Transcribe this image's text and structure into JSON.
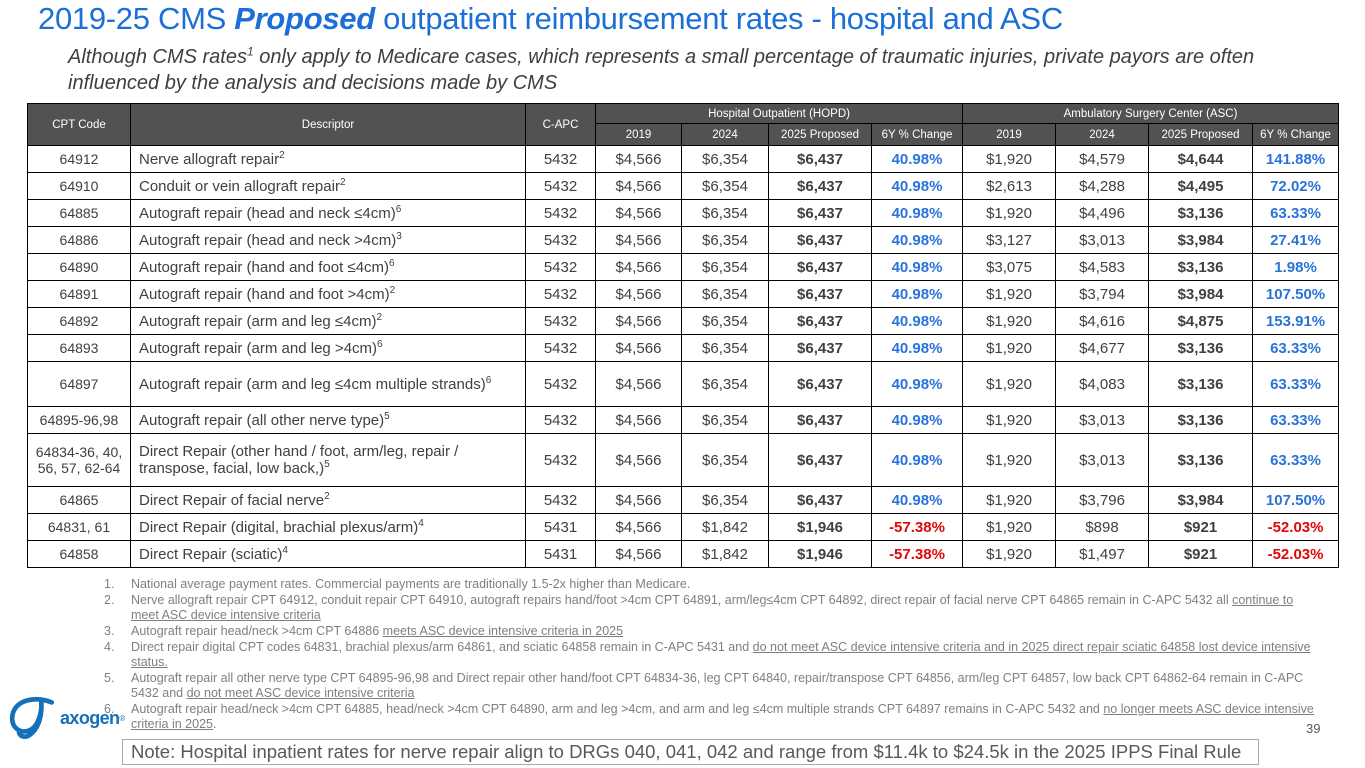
{
  "title": {
    "part1": "2019-25 CMS ",
    "emphasis": "Proposed",
    "part2": " outpatient reimbursement rates - hospital and ASC"
  },
  "subtitle": {
    "part1": "Although CMS rates",
    "sup": "1",
    "part2": " only apply to Medicare cases, which represents a small percentage of traumatic injuries, private payors are often influenced by the analysis and decisions made by CMS"
  },
  "table": {
    "headers": {
      "cpt": "CPT Code",
      "descriptor": "Descriptor",
      "c_apc": "C-APC"
    },
    "group_headers": [
      "Hospital Outpatient (HOPD)",
      "Ambulatory Surgery Center (ASC)"
    ],
    "sub_headers": [
      "2019",
      "2024",
      "2025 Proposed",
      "6Y % Change"
    ],
    "rows": [
      {
        "cpt": "64912",
        "descriptor": "Nerve allograft repair",
        "note_ref": "2",
        "c_apc": "5432",
        "hopd": [
          "$4,566",
          "$6,354",
          "$6,437",
          "40.98%"
        ],
        "asc": [
          "$1,920",
          "$4,579",
          "$4,644",
          "141.88%"
        ]
      },
      {
        "cpt": "64910",
        "descriptor": "Conduit or vein allograft repair",
        "note_ref": "2",
        "c_apc": "5432",
        "hopd": [
          "$4,566",
          "$6,354",
          "$6,437",
          "40.98%"
        ],
        "asc": [
          "$2,613",
          "$4,288",
          "$4,495",
          "72.02%"
        ]
      },
      {
        "cpt": "64885",
        "descriptor": "Autograft repair (head and neck ≤4cm)",
        "note_ref": "6",
        "c_apc": "5432",
        "hopd": [
          "$4,566",
          "$6,354",
          "$6,437",
          "40.98%"
        ],
        "asc": [
          "$1,920",
          "$4,496",
          "$3,136",
          "63.33%"
        ]
      },
      {
        "cpt": "64886",
        "descriptor": "Autograft repair (head and neck >4cm)",
        "note_ref": "3",
        "c_apc": "5432",
        "hopd": [
          "$4,566",
          "$6,354",
          "$6,437",
          "40.98%"
        ],
        "asc": [
          "$3,127",
          "$3,013",
          "$3,984",
          "27.41%"
        ]
      },
      {
        "cpt": "64890",
        "descriptor": "Autograft repair (hand and foot ≤4cm)",
        "note_ref": "6",
        "c_apc": "5432",
        "hopd": [
          "$4,566",
          "$6,354",
          "$6,437",
          "40.98%"
        ],
        "asc": [
          "$3,075",
          "$4,583",
          "$3,136",
          "1.98%"
        ]
      },
      {
        "cpt": "64891",
        "descriptor": "Autograft repair (hand and foot >4cm)",
        "note_ref": "2",
        "c_apc": "5432",
        "hopd": [
          "$4,566",
          "$6,354",
          "$6,437",
          "40.98%"
        ],
        "asc": [
          "$1,920",
          "$3,794",
          "$3,984",
          "107.50%"
        ]
      },
      {
        "cpt": "64892",
        "descriptor": "Autograft repair (arm and leg ≤4cm)",
        "note_ref": "2",
        "c_apc": "5432",
        "hopd": [
          "$4,566",
          "$6,354",
          "$6,437",
          "40.98%"
        ],
        "asc": [
          "$1,920",
          "$4,616",
          "$4,875",
          "153.91%"
        ]
      },
      {
        "cpt": "64893",
        "descriptor": "Autograft repair (arm and leg >4cm)",
        "note_ref": "6",
        "c_apc": "5432",
        "hopd": [
          "$4,566",
          "$6,354",
          "$6,437",
          "40.98%"
        ],
        "asc": [
          "$1,920",
          "$4,677",
          "$3,136",
          "63.33%"
        ]
      },
      {
        "cpt": "64897",
        "descriptor": "Autograft repair (arm and leg ≤4cm multiple strands)",
        "note_ref": "6",
        "c_apc": "5432",
        "hopd": [
          "$4,566",
          "$6,354",
          "$6,437",
          "40.98%"
        ],
        "asc": [
          "$1,920",
          "$4,083",
          "$3,136",
          "63.33%"
        ]
      },
      {
        "cpt": "64895-96,98",
        "descriptor": "Autograft repair (all other nerve type)",
        "note_ref": "5",
        "c_apc": "5432",
        "hopd": [
          "$4,566",
          "$6,354",
          "$6,437",
          "40.98%"
        ],
        "asc": [
          "$1,920",
          "$3,013",
          "$3,136",
          "63.33%"
        ]
      },
      {
        "cpt": "64834-36, 40, 56, 57, 62-64",
        "descriptor": "Direct Repair (other hand / foot,  arm/leg, repair / transpose, facial, low back,)",
        "note_ref": "5",
        "c_apc": "5432",
        "hopd": [
          "$4,566",
          "$6,354",
          "$6,437",
          "40.98%"
        ],
        "asc": [
          "$1,920",
          "$3,013",
          "$3,136",
          "63.33%"
        ]
      },
      {
        "cpt": "64865",
        "descriptor": "Direct Repair of facial nerve",
        "note_ref": "2",
        "c_apc": "5432",
        "hopd": [
          "$4,566",
          "$6,354",
          "$6,437",
          "40.98%"
        ],
        "asc": [
          "$1,920",
          "$3,796",
          "$3,984",
          "107.50%"
        ]
      },
      {
        "cpt": "64831, 61",
        "descriptor": "Direct Repair (digital, brachial plexus/arm)",
        "note_ref": "4",
        "c_apc": "5431",
        "hopd": [
          "$4,566",
          "$1,842",
          "$1,946",
          "-57.38%"
        ],
        "asc": [
          "$1,920",
          "$898",
          "$921",
          "-52.03%"
        ]
      },
      {
        "cpt": "64858",
        "descriptor": "Direct Repair (sciatic)",
        "note_ref": "4",
        "c_apc": "5431",
        "hopd": [
          "$4,566",
          "$1,842",
          "$1,946",
          "-57.38%"
        ],
        "asc": [
          "$1,920",
          "$1,497",
          "$921",
          "-52.03%"
        ]
      }
    ]
  },
  "footnotes": [
    {
      "segments": [
        {
          "t": "National average payment rates. Commercial payments are traditionally 1.5-2x higher than Medicare."
        }
      ]
    },
    {
      "segments": [
        {
          "t": "Nerve allograft repair CPT 64912, conduit repair CPT 64910, autograft repairs hand/foot >4cm CPT 64891, arm/leg≤4cm CPT 64892, direct repair of facial nerve CPT 64865 remain in C-APC 5432 all "
        },
        {
          "t": "continue to meet ASC device intensive criteria",
          "u": true
        }
      ]
    },
    {
      "segments": [
        {
          "t": "Autograft repair head/neck >4cm CPT 64886 "
        },
        {
          "t": "meets ASC device intensive criteria in 2025",
          "u": true
        }
      ]
    },
    {
      "segments": [
        {
          "t": "Direct repair digital CPT codes 64831, brachial plexus/arm 64861, and sciatic 64858 remain in C-APC 5431 and "
        },
        {
          "t": "do not meet ASC device intensive criteria and in 2025 direct repair sciatic 64858 lost device intensive status.",
          "u": true
        }
      ]
    },
    {
      "segments": [
        {
          "t": "Autograft repair all other nerve type CPT 64895-96,98 and Direct repair other hand/foot CPT 64834-36, leg CPT 64840, repair/transpose CPT 64856, arm/leg CPT 64857, low back CPT 64862-64 remain in C-APC 5432 and "
        },
        {
          "t": "do not meet ASC device intensive criteria",
          "u": true
        }
      ]
    },
    {
      "segments": [
        {
          "t": "Autograft repair head/neck >4cm CPT 64885, head/neck >4cm CPT 64890, arm and leg >4cm, and arm and leg ≤4cm multiple strands CPT 64897 remains in C-APC 5432 and "
        },
        {
          "t": "no longer meets ASC device intensive criteria in 2025",
          "u": true
        },
        {
          "t": "."
        }
      ]
    }
  ],
  "footer": {
    "logo_text": "axogen",
    "logo_reg": "®",
    "page_number": "39",
    "note": "Note: Hospital inpatient rates for nerve repair align to DRGs 040, 041, 042 and range from $11.4k to $24.5k in the 2025 IPPS Final Rule"
  },
  "colors": {
    "title_blue": "#1b6fd6",
    "header_gray": "#525252",
    "positive_change_blue": "#2973d9",
    "negative_change_red": "#e00707",
    "logo_blue": "#1470b8"
  }
}
